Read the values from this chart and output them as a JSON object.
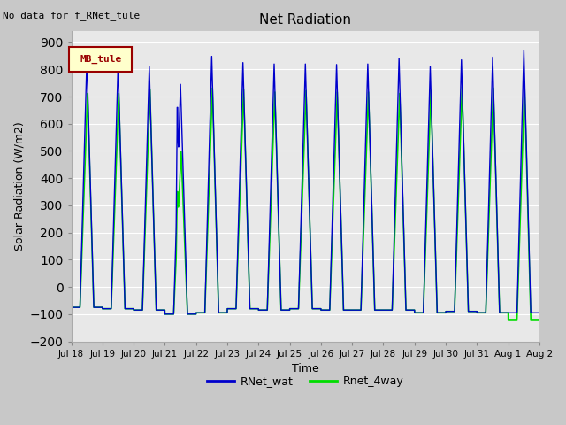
{
  "title": "Net Radiation",
  "ylabel": "Solar Radiation (W/m2)",
  "xlabel": "Time",
  "ylim": [
    -200,
    940
  ],
  "yticks": [
    -200,
    -100,
    0,
    100,
    200,
    300,
    400,
    500,
    600,
    700,
    800,
    900
  ],
  "xtick_labels": [
    "Jul 18",
    "Jul 19",
    "Jul 20",
    "Jul 21",
    "Jul 22",
    "Jul 23",
    "Jul 24",
    "Jul 25",
    "Jul 26",
    "Jul 27",
    "Jul 28",
    "Jul 29",
    "Jul 30",
    "Jul 31",
    "Aug 1",
    "Aug 2"
  ],
  "no_data_text": "No data for f_RNet_tule",
  "legend_box_text": "MB_tule",
  "legend_box_facecolor": "#ffffcc",
  "legend_box_edgecolor": "#990000",
  "line1_color": "#0000cc",
  "line2_color": "#00dd00",
  "line1_label": "RNet_wat",
  "line2_label": "Rnet_4way",
  "bg_color": "#c8c8c8",
  "plot_bg_color": "#e8e8e8",
  "grid_color": "#ffffff",
  "n_days": 15,
  "samples_per_day": 288,
  "peak_values_blue": [
    840,
    820,
    810,
    745,
    848,
    825,
    820,
    820,
    818,
    820,
    840,
    810,
    835,
    845,
    870
  ],
  "peak_values_green": [
    715,
    715,
    730,
    500,
    735,
    730,
    720,
    725,
    720,
    720,
    715,
    725,
    740,
    735,
    740
  ],
  "night_values_blue": [
    -75,
    -80,
    -85,
    -100,
    -95,
    -80,
    -85,
    -80,
    -85,
    -85,
    -85,
    -95,
    -90,
    -95,
    -95
  ],
  "night_values_green": [
    -75,
    -80,
    -85,
    -100,
    -95,
    -80,
    -85,
    -80,
    -85,
    -85,
    -85,
    -95,
    -90,
    -95,
    -120
  ],
  "day21_mid_blue": 660,
  "day21_mid_green": 350
}
